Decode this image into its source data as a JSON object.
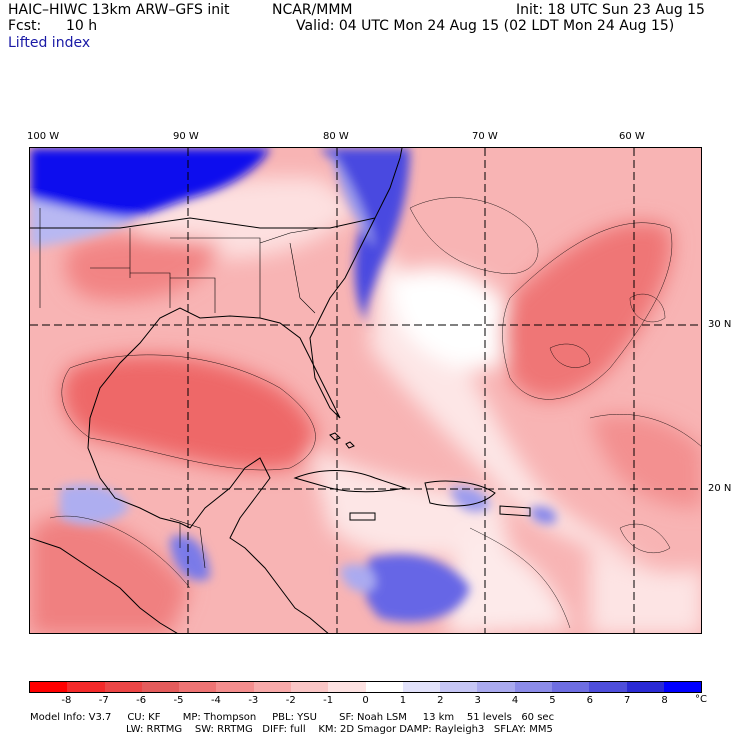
{
  "header": {
    "title": "HAIC–HIWC 13km ARW–GFS init",
    "org": "NCAR/MMM",
    "init": "Init: 18 UTC Sun 23 Aug 15",
    "fcst_label": "Fcst:",
    "fcst_value": "10 h",
    "valid": "Valid: 04 UTC Mon 24 Aug 15 (02 LDT Mon 24 Aug 15)",
    "field": "Lifted index"
  },
  "map": {
    "lon_labels": [
      "100 W",
      "90 W",
      "80 W",
      "70 W",
      "60 W"
    ],
    "lat_labels": [
      "30 N",
      "20 N"
    ]
  },
  "colorbar": {
    "unit": "°C",
    "labels": [
      "-8",
      "-7",
      "-6",
      "-5",
      "-4",
      "-3",
      "-2",
      "-1",
      "0",
      "1",
      "2",
      "3",
      "4",
      "5",
      "6",
      "7",
      "8"
    ],
    "colors": [
      "#ff0000",
      "#f42a2a",
      "#ec4646",
      "#e45c5c",
      "#ee7474",
      "#f48e8e",
      "#f8aaaa",
      "#fac6c6",
      "#fde2e2",
      "#ffffff",
      "#e2e2fb",
      "#c6c6f5",
      "#aaaaef",
      "#8c8ce9",
      "#6e6ee2",
      "#4e4edb",
      "#2a2ad4",
      "#0000ff"
    ]
  },
  "model_info": {
    "line1": "Model Info: V3.7     CU: KF       MP: Thompson     PBL: YSU       SF: Noah LSM     13 km    51 levels   60 sec",
    "line2": "LW: RRTMG    SW: RRTMG   DIFF: full    KM: 2D Smagor DAMP: Rayleigh3   SFLAY: MM5"
  }
}
